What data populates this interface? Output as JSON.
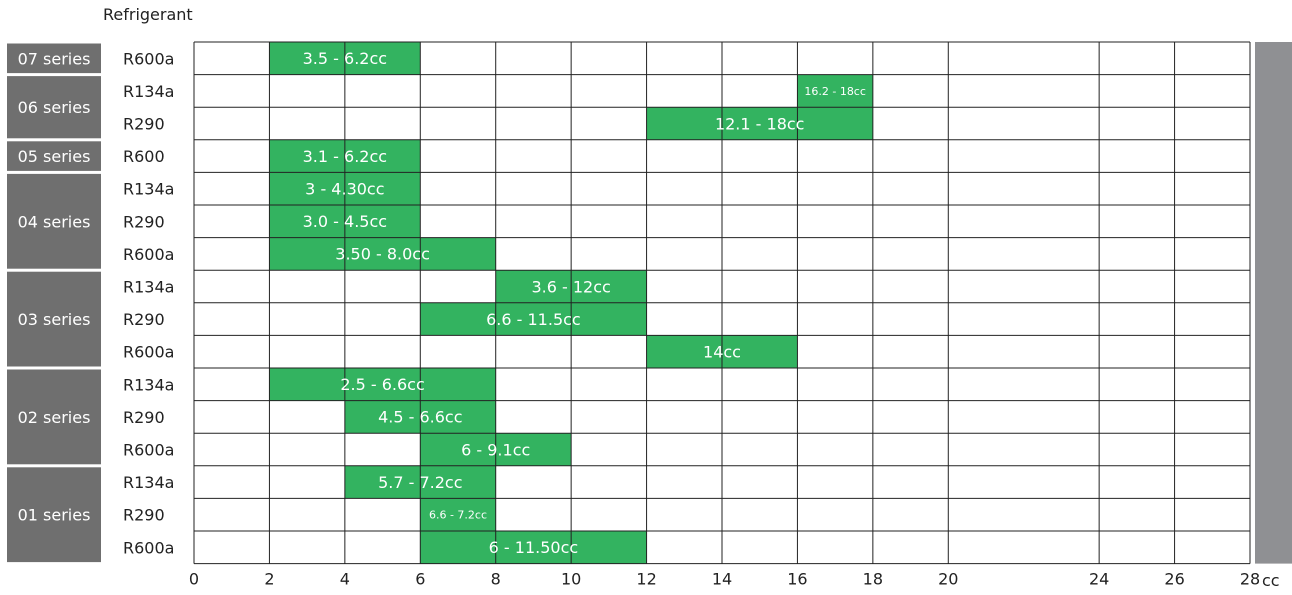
{
  "chart_data": {
    "type": "bar",
    "orientation": "horizontal-range",
    "header_label": "Refrigerant",
    "unit_label": "cc",
    "xlim": [
      0,
      28
    ],
    "x_ticks": [
      0,
      2,
      4,
      6,
      8,
      10,
      12,
      14,
      16,
      18,
      20,
      24,
      26,
      28
    ],
    "grid": true,
    "bar_color": "#33b360",
    "series_box_color": "#6f6f6f",
    "side_bar_color": "#8f9093",
    "groups": [
      {
        "name": "07 series",
        "rows": [
          {
            "refrigerant": "R600a",
            "start": 2,
            "end": 6,
            "label": "3.5 - 6.2cc"
          }
        ]
      },
      {
        "name": "06 series",
        "rows": [
          {
            "refrigerant": "R134a",
            "start": 16,
            "end": 18,
            "label": "16.2 - 18cc"
          },
          {
            "refrigerant": "R290",
            "start": 12,
            "end": 18,
            "label": "12.1 - 18cc"
          }
        ]
      },
      {
        "name": "05 series",
        "rows": [
          {
            "refrigerant": "R600",
            "start": 2,
            "end": 6,
            "label": "3.1 - 6.2cc"
          }
        ]
      },
      {
        "name": "04 series",
        "rows": [
          {
            "refrigerant": "R134a",
            "start": 2,
            "end": 6,
            "label": "3 - 4.30cc"
          },
          {
            "refrigerant": "R290",
            "start": 2,
            "end": 6,
            "label": "3.0 - 4.5cc"
          },
          {
            "refrigerant": "R600a",
            "start": 2,
            "end": 8,
            "label": "3.50 - 8.0cc"
          }
        ]
      },
      {
        "name": "03 series",
        "rows": [
          {
            "refrigerant": "R134a",
            "start": 8,
            "end": 12,
            "label": "3.6 - 12cc"
          },
          {
            "refrigerant": "R290",
            "start": 6,
            "end": 12,
            "label": "6.6 - 11.5cc"
          },
          {
            "refrigerant": "R600a",
            "start": 12,
            "end": 16,
            "label": "14cc"
          }
        ]
      },
      {
        "name": "02 series",
        "rows": [
          {
            "refrigerant": "R134a",
            "start": 2,
            "end": 8,
            "label": "2.5 - 6.6cc"
          },
          {
            "refrigerant": "R290",
            "start": 4,
            "end": 8,
            "label": "4.5 - 6.6cc"
          },
          {
            "refrigerant": "R600a",
            "start": 6,
            "end": 10,
            "label": "6 - 9.1cc"
          }
        ]
      },
      {
        "name": "01 series",
        "rows": [
          {
            "refrigerant": "R134a",
            "start": 4,
            "end": 8,
            "label": "5.7 - 7.2cc"
          },
          {
            "refrigerant": "R290",
            "start": 6,
            "end": 8,
            "label": "6.6 - 7.2cc"
          },
          {
            "refrigerant": "R600a",
            "start": 6,
            "end": 12,
            "label": "6 - 11.50cc"
          }
        ]
      }
    ]
  }
}
